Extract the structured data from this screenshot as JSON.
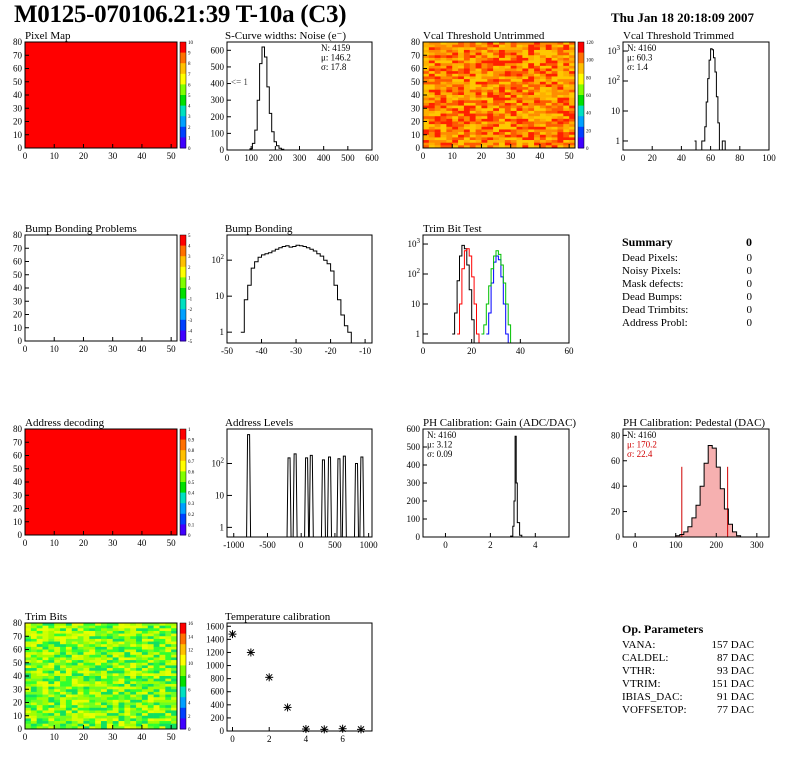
{
  "header": {
    "title": "M0125-070106.21:39 T-10a (C3)",
    "timestamp": "Thu Jan 18 20:18:09 2007"
  },
  "chart_data": [
    {
      "id": "pixel-map",
      "type": "heatmap",
      "title": "Pixel Map",
      "xlim": [
        0,
        52
      ],
      "ylim": [
        0,
        80
      ],
      "xticks": [
        "0",
        "10",
        "20",
        "30",
        "40",
        "50"
      ],
      "yticks": [
        "0",
        "10",
        "20",
        "30",
        "40",
        "50",
        "60",
        "70",
        "80"
      ],
      "fill": "uniform",
      "uniform_color": "#ff0000",
      "colorbar": [
        "0",
        "1",
        "2",
        "3",
        "4",
        "5",
        "6",
        "7",
        "8",
        "9",
        "10"
      ]
    },
    {
      "id": "scurve-widths",
      "type": "histogram",
      "title": "S-Curve widths: Noise (e⁻)",
      "xlim": [
        0,
        600
      ],
      "ylim": [
        0,
        650
      ],
      "xticks": [
        "0",
        "100",
        "200",
        "300",
        "400",
        "500",
        "600"
      ],
      "yticks": [
        "0",
        "100",
        "200",
        "300",
        "400",
        "500",
        "600"
      ],
      "bins": [
        [
          80,
          0
        ],
        [
          95,
          8
        ],
        [
          105,
          40
        ],
        [
          115,
          120
        ],
        [
          125,
          300
        ],
        [
          135,
          520
        ],
        [
          145,
          620
        ],
        [
          155,
          560
        ],
        [
          165,
          380
        ],
        [
          175,
          220
        ],
        [
          185,
          110
        ],
        [
          195,
          50
        ],
        [
          205,
          25
        ],
        [
          215,
          10
        ],
        [
          225,
          4
        ],
        [
          235,
          0
        ]
      ],
      "stats": [
        "N: 4159",
        "μ: 146.2",
        "σ: 17.8"
      ],
      "annotation": "<= 1"
    },
    {
      "id": "vcal-untrimmed",
      "type": "heatmap",
      "title": "Vcal Threshold Untrimmed",
      "xlim": [
        0,
        52
      ],
      "ylim": [
        0,
        80
      ],
      "xticks": [
        "0",
        "10",
        "20",
        "30",
        "40",
        "50"
      ],
      "yticks": [
        "0",
        "10",
        "20",
        "30",
        "40",
        "50",
        "60",
        "70",
        "80"
      ],
      "fill": "random",
      "palette": [
        "#ff2000",
        "#ff5a00",
        "#ff8c00",
        "#ffb000",
        "#ffc800"
      ],
      "colorbar": [
        "0",
        "20",
        "40",
        "60",
        "80",
        "100",
        "120"
      ]
    },
    {
      "id": "vcal-trimmed",
      "type": "histogram",
      "title": "Vcal Threshold Trimmed",
      "xlim": [
        0,
        100
      ],
      "log": true,
      "ylim": [
        0.5,
        2000
      ],
      "xticks": [
        "0",
        "20",
        "40",
        "60",
        "80",
        "100"
      ],
      "yticks": [
        "1",
        "10",
        "10²",
        "10³"
      ],
      "bins": [
        [
          49,
          1
        ],
        [
          50,
          0
        ],
        [
          53,
          0
        ],
        [
          54,
          1
        ],
        [
          55,
          1
        ],
        [
          56,
          3
        ],
        [
          57,
          20
        ],
        [
          58,
          120
        ],
        [
          59,
          500
        ],
        [
          60,
          1200
        ],
        [
          61,
          1100
        ],
        [
          62,
          600
        ],
        [
          63,
          200
        ],
        [
          64,
          30
        ],
        [
          65,
          4
        ],
        [
          66,
          0
        ],
        [
          68,
          1
        ],
        [
          69,
          1
        ],
        [
          70,
          0
        ]
      ],
      "stats": [
        "N: 4160",
        "μ: 60.3",
        "σ: 1.4"
      ]
    },
    {
      "id": "bump-problems",
      "type": "heatmap",
      "title": "Bump Bonding Problems",
      "xlim": [
        0,
        52
      ],
      "ylim": [
        0,
        80
      ],
      "xticks": [
        "0",
        "10",
        "20",
        "30",
        "40",
        "50"
      ],
      "yticks": [
        "0",
        "10",
        "20",
        "30",
        "40",
        "50",
        "60",
        "70",
        "80"
      ],
      "fill": "empty",
      "colorbar": [
        "-5",
        "-4",
        "-3",
        "-2",
        "-1",
        "0",
        "1",
        "2",
        "3",
        "4",
        "5"
      ]
    },
    {
      "id": "bump-bonding",
      "type": "histogram",
      "title": "Bump Bonding",
      "xlim": [
        -50,
        -8
      ],
      "log": true,
      "ylim": [
        0.5,
        500
      ],
      "xticks": [
        "-50",
        "-40",
        "-30",
        "-20",
        "-10"
      ],
      "yticks": [
        "1",
        "10",
        "10²"
      ],
      "bins": [
        [
          -46,
          1
        ],
        [
          -45,
          8
        ],
        [
          -44,
          20
        ],
        [
          -43,
          60
        ],
        [
          -42,
          90
        ],
        [
          -41,
          120
        ],
        [
          -40,
          140
        ],
        [
          -39,
          150
        ],
        [
          -38,
          160
        ],
        [
          -37,
          180
        ],
        [
          -36,
          200
        ],
        [
          -35,
          220
        ],
        [
          -34,
          240
        ],
        [
          -33,
          250
        ],
        [
          -32,
          230
        ],
        [
          -31,
          240
        ],
        [
          -30,
          260
        ],
        [
          -29,
          250
        ],
        [
          -28,
          240
        ],
        [
          -27,
          220
        ],
        [
          -26,
          200
        ],
        [
          -25,
          180
        ],
        [
          -24,
          150
        ],
        [
          -23,
          130
        ],
        [
          -22,
          100
        ],
        [
          -21,
          80
        ],
        [
          -20,
          50
        ],
        [
          -19,
          20
        ],
        [
          -18,
          8
        ],
        [
          -17,
          3
        ],
        [
          -16,
          1.5
        ],
        [
          -15,
          1
        ],
        [
          -14,
          0.5
        ]
      ]
    },
    {
      "id": "trim-bit-test",
      "type": "histogram",
      "title": "Trim Bit Test",
      "xlim": [
        0,
        60
      ],
      "log": true,
      "ylim": [
        0.5,
        2000
      ],
      "xticks": [
        "0",
        "20",
        "40",
        "60"
      ],
      "yticks": [
        "1",
        "10",
        "10²",
        "10³"
      ],
      "series": [
        {
          "name": "black",
          "color": "#000000",
          "bins": [
            [
              12,
              1
            ],
            [
              13,
              5
            ],
            [
              14,
              60
            ],
            [
              15,
              400
            ],
            [
              16,
              900
            ],
            [
              17,
              700
            ],
            [
              18,
              200
            ],
            [
              19,
              30
            ],
            [
              20,
              3
            ],
            [
              21,
              0.5
            ]
          ]
        },
        {
          "name": "red",
          "color": "#ff0000",
          "bins": [
            [
              14,
              1
            ],
            [
              15,
              10
            ],
            [
              16,
              150
            ],
            [
              17,
              600
            ],
            [
              18,
              700
            ],
            [
              19,
              400
            ],
            [
              20,
              80
            ],
            [
              21,
              10
            ],
            [
              22,
              1
            ],
            [
              23,
              0.5
            ]
          ]
        },
        {
          "name": "blue",
          "color": "#0000ff",
          "bins": [
            [
              26,
              1
            ],
            [
              27,
              5
            ],
            [
              28,
              50
            ],
            [
              29,
              250
            ],
            [
              30,
              400
            ],
            [
              31,
              300
            ],
            [
              32,
              80
            ],
            [
              33,
              10
            ],
            [
              34,
              1
            ],
            [
              35,
              0.5
            ]
          ]
        },
        {
          "name": "green",
          "color": "#00c000",
          "bins": [
            [
              24,
              1
            ],
            [
              25,
              2
            ],
            [
              26,
              10
            ],
            [
              27,
              40
            ],
            [
              28,
              150
            ],
            [
              29,
              400
            ],
            [
              30,
              600
            ],
            [
              31,
              450
            ],
            [
              32,
              200
            ],
            [
              33,
              50
            ],
            [
              34,
              10
            ],
            [
              35,
              2
            ],
            [
              36,
              0.5
            ]
          ]
        }
      ]
    },
    {
      "id": "address-decoding",
      "type": "heatmap",
      "title": "Address decoding",
      "xlim": [
        0,
        52
      ],
      "ylim": [
        0,
        80
      ],
      "xticks": [
        "0",
        "10",
        "20",
        "30",
        "40",
        "50"
      ],
      "yticks": [
        "0",
        "10",
        "20",
        "30",
        "40",
        "50",
        "60",
        "70",
        "80"
      ],
      "fill": "uniform",
      "uniform_color": "#ff0000",
      "colorbar": [
        "0",
        "0.1",
        "0.2",
        "0.3",
        "0.4",
        "0.5",
        "0.6",
        "0.7",
        "0.8",
        "0.9",
        "1"
      ]
    },
    {
      "id": "address-levels",
      "type": "histogram",
      "title": "Address Levels",
      "xlim": [
        -1100,
        1050
      ],
      "log": true,
      "ylim": [
        0.5,
        1200
      ],
      "xticks": [
        "-1000",
        "-500",
        "0",
        "500",
        "1000"
      ],
      "yticks": [
        "1",
        "10",
        "10²"
      ],
      "spikes": [
        [
          -780,
          800
        ],
        [
          -180,
          150
        ],
        [
          -90,
          200
        ],
        [
          80,
          150
        ],
        [
          150,
          180
        ],
        [
          330,
          130
        ],
        [
          420,
          160
        ],
        [
          560,
          140
        ],
        [
          640,
          170
        ],
        [
          820,
          100
        ],
        [
          900,
          160
        ]
      ]
    },
    {
      "id": "ph-gain",
      "type": "histogram",
      "title": "PH Calibration: Gain (ADC/DAC)",
      "xlim": [
        -1,
        5.5
      ],
      "ylim": [
        0,
        600
      ],
      "xticks": [
        "0",
        "2",
        "4"
      ],
      "yticks": [
        "0",
        "100",
        "200",
        "300",
        "400",
        "500",
        "600"
      ],
      "bins": [
        [
          2.7,
          0
        ],
        [
          2.9,
          5
        ],
        [
          3.0,
          60
        ],
        [
          3.05,
          200
        ],
        [
          3.1,
          560
        ],
        [
          3.15,
          300
        ],
        [
          3.2,
          80
        ],
        [
          3.3,
          10
        ],
        [
          3.4,
          0
        ]
      ],
      "stats": [
        "N: 4160",
        "μ: 3.12",
        "σ: 0.09"
      ]
    },
    {
      "id": "ph-pedestal",
      "type": "histogram",
      "title": "PH Calibration: Pedestal (DAC)",
      "xlim": [
        -30,
        330
      ],
      "ylim": [
        0,
        85
      ],
      "xticks": [
        "0",
        "100",
        "200",
        "300"
      ],
      "yticks": [
        "0",
        "20",
        "40",
        "60",
        "80"
      ],
      "bins": [
        [
          90,
          0
        ],
        [
          100,
          1
        ],
        [
          110,
          2
        ],
        [
          120,
          4
        ],
        [
          130,
          8
        ],
        [
          140,
          15
        ],
        [
          150,
          25
        ],
        [
          160,
          40
        ],
        [
          170,
          58
        ],
        [
          180,
          72
        ],
        [
          190,
          70
        ],
        [
          200,
          55
        ],
        [
          210,
          38
        ],
        [
          220,
          22
        ],
        [
          230,
          10
        ],
        [
          240,
          4
        ],
        [
          250,
          1
        ],
        [
          260,
          0
        ]
      ],
      "fit_range": [
        115,
        228
      ],
      "stats": [
        "N: 4160",
        "μ: 170.2",
        "σ: 22.4"
      ]
    },
    {
      "id": "trim-bits",
      "type": "heatmap",
      "title": "Trim Bits",
      "xlim": [
        0,
        52
      ],
      "ylim": [
        0,
        80
      ],
      "xticks": [
        "0",
        "10",
        "20",
        "30",
        "40",
        "50"
      ],
      "yticks": [
        "0",
        "10",
        "20",
        "30",
        "40",
        "50",
        "60",
        "70",
        "80"
      ],
      "fill": "random",
      "palette": [
        "#30ff30",
        "#70ff20",
        "#a0ff00",
        "#d0ff00",
        "#e8ff00",
        "#10e060"
      ],
      "colorbar": [
        "0",
        "2",
        "4",
        "6",
        "8",
        "10",
        "12",
        "14",
        "16"
      ]
    },
    {
      "id": "temperature-calibration",
      "type": "scatter",
      "title": "Temperature calibration",
      "xlim": [
        -0.3,
        7.6
      ],
      "ylim": [
        0,
        1650
      ],
      "xticks": [
        "0",
        "2",
        "4",
        "6"
      ],
      "yticks": [
        "0",
        "200",
        "400",
        "600",
        "800",
        "1000",
        "1200",
        "1400",
        "1600"
      ],
      "points": [
        [
          0,
          1480
        ],
        [
          1,
          1200
        ],
        [
          2,
          820
        ],
        [
          3,
          360
        ],
        [
          4,
          30
        ],
        [
          5,
          25
        ],
        [
          6,
          35
        ],
        [
          7,
          25
        ]
      ]
    }
  ],
  "summary": {
    "title": "Summary",
    "total": "0",
    "rows": [
      {
        "label": "Dead Pixels:",
        "value": "0"
      },
      {
        "label": "Noisy Pixels:",
        "value": "0"
      },
      {
        "label": "Mask defects:",
        "value": "0"
      },
      {
        "label": "Dead Bumps:",
        "value": "0"
      },
      {
        "label": "Dead Trimbits:",
        "value": "0"
      },
      {
        "label": "Address Probl:",
        "value": "0"
      }
    ]
  },
  "op_params": {
    "title": "Op. Parameters",
    "rows": [
      {
        "label": "VANA:",
        "value": "157 DAC"
      },
      {
        "label": "CALDEL:",
        "value": "87 DAC"
      },
      {
        "label": "VTHR:",
        "value": "93 DAC"
      },
      {
        "label": "VTRIM:",
        "value": "151 DAC"
      },
      {
        "label": "IBIAS_DAC:",
        "value": "91 DAC"
      },
      {
        "label": "VOFFSETOP:",
        "value": "77 DAC"
      }
    ]
  }
}
